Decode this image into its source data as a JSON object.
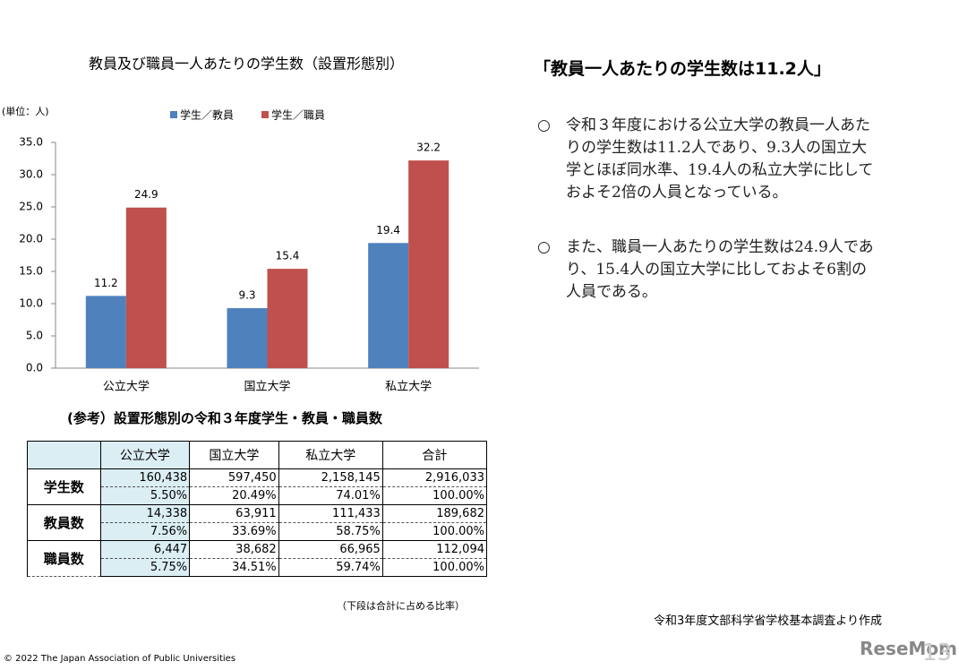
{
  "chart_data": {
    "type": "bar",
    "title": "教員及び職員一人あたりの学生数（設置形態別）",
    "unit_label": "(単位：人)",
    "categories": [
      "公立大学",
      "国立大学",
      "私立大学"
    ],
    "series": [
      {
        "name": "学生／教員",
        "color": "#4f81bd",
        "values": [
          11.2,
          9.3,
          19.4
        ]
      },
      {
        "name": "学生／職員",
        "color": "#c0504d",
        "values": [
          24.9,
          15.4,
          32.2
        ]
      }
    ],
    "ylim": [
      0,
      35
    ],
    "yticks": [
      {
        "value": 0,
        "label": "0.0"
      },
      {
        "value": 5,
        "label": "5.0"
      },
      {
        "value": 10,
        "label": "10.0"
      },
      {
        "value": 15,
        "label": "15.0"
      },
      {
        "value": 20,
        "label": "20.0"
      },
      {
        "value": 25,
        "label": "25.0"
      },
      {
        "value": 30,
        "label": "30.0"
      },
      {
        "value": 35,
        "label": "35.0"
      }
    ],
    "grid": false
  },
  "table": {
    "title": "(参考）設置形態別の令和３年度学生・教員・職員数",
    "header": [
      "公立大学",
      "国立大学",
      "私立大学",
      "合計"
    ],
    "rows": [
      {
        "label": "学生数",
        "counts": [
          "160,438",
          "597,450",
          "2,158,145",
          "2,916,033"
        ],
        "shares": [
          "5.50%",
          "20.49%",
          "74.01%",
          "100.00%"
        ]
      },
      {
        "label": "教員数",
        "counts": [
          "14,338",
          "63,911",
          "111,433",
          "189,682"
        ],
        "shares": [
          "7.56%",
          "33.69%",
          "58.75%",
          "100.00%"
        ]
      },
      {
        "label": "職員数",
        "counts": [
          "6,447",
          "38,682",
          "66,965",
          "112,094"
        ],
        "shares": [
          "5.75%",
          "34.51%",
          "59.74%",
          "100.00%"
        ]
      }
    ],
    "note": "（下段は合計に占める比率）"
  },
  "heading": "「教員一人あたりの学生数は11.2人」",
  "bullets": [
    {
      "mark": "○",
      "lines": [
        "令和３年度における公立大学の教員一人あた",
        "りの学生数は11.2人であり、9.3人の国立大",
        "学とほぼ同水準、19.4人の私立大学に比して",
        "およそ2倍の人員となっている。"
      ]
    },
    {
      "mark": "○",
      "lines": [
        "また、職員一人あたりの学生数は24.9人であ",
        "り、15.4人の国立大学に比しておよそ6割の",
        "人員である。"
      ]
    }
  ],
  "source": "令和3年度文部科学省学校基本調査より作成",
  "footer": "©  2022  The Japan Association of Public Universities",
  "page_number": "13",
  "watermark": "ReseMom"
}
